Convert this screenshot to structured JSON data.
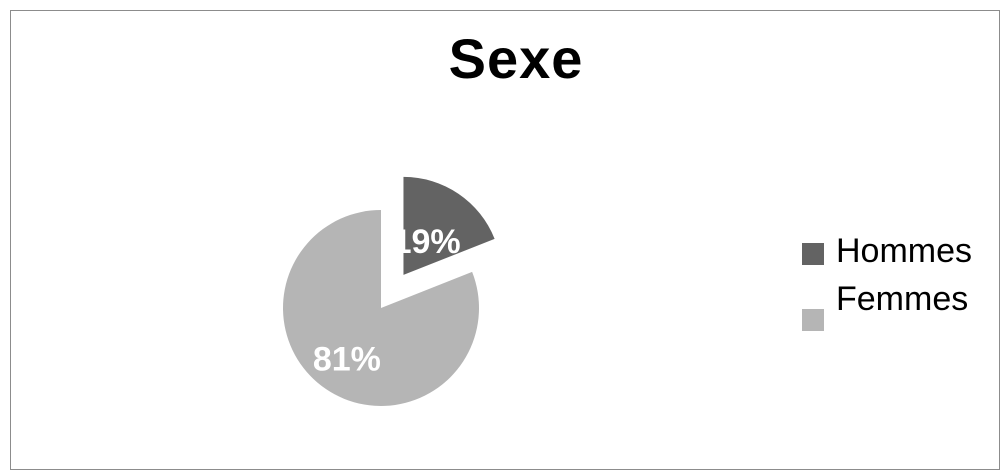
{
  "chart_data": {
    "type": "pie",
    "title": "Sexe",
    "categories": [
      "Hommes",
      "Femmes"
    ],
    "values": [
      19,
      81
    ],
    "labels": [
      "19%",
      "81%"
    ],
    "exploded": "Hommes",
    "legend": "right",
    "colors": [
      "#636363",
      "#b5b5b5"
    ]
  }
}
